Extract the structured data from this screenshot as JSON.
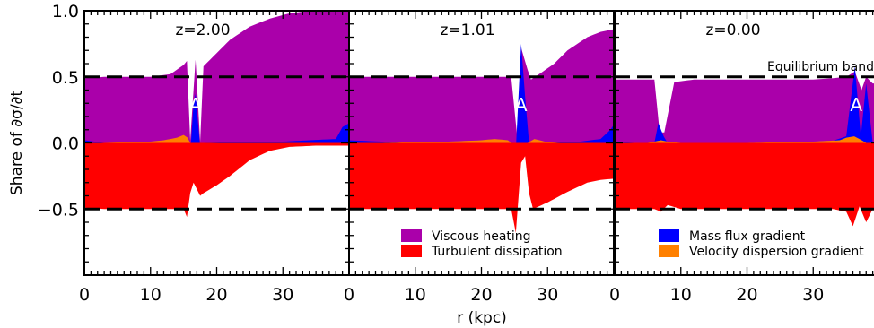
{
  "chart_data": {
    "type": "area",
    "xlabel": "r  (kpc)",
    "ylabel": "Share of ∂σ/∂t",
    "xlim": [
      0,
      40
    ],
    "ylim": [
      -1.0,
      1.0
    ],
    "x_ticks": [
      0,
      10,
      20,
      30
    ],
    "y_ticks": [
      1.0,
      0.5,
      0.0,
      -0.5
    ],
    "y_tick_labels": [
      "1.0",
      "0.5",
      "0.0",
      "−0.5"
    ],
    "reference_lines": [
      0.5,
      -0.5
    ],
    "band_annotation": "Equilibrium band",
    "peak_label": "A",
    "colors": {
      "Viscous heating": "#aa00aa",
      "Turbulent dissipation": "#ff0000",
      "Mass flux gradient": "#0000ff",
      "Velocity dispersion gradient": "#ff8000"
    },
    "legend": [
      [
        "Viscous heating",
        "Turbulent dissipation"
      ],
      [
        "Mass flux gradient",
        "Velocity dispersion gradient"
      ]
    ],
    "panels": [
      {
        "label": "z=2.00",
        "peak_x": 16.8,
        "viscous": [
          [
            0,
            0.49
          ],
          [
            3,
            0.5
          ],
          [
            6,
            0.5
          ],
          [
            10,
            0.5
          ],
          [
            13,
            0.52
          ],
          [
            15,
            0.59
          ],
          [
            15.5,
            0.62
          ],
          [
            16,
            0.02
          ],
          [
            16.8,
            0.63
          ],
          [
            17.5,
            0.01
          ],
          [
            18,
            0.58
          ],
          [
            20,
            0.68
          ],
          [
            22,
            0.78
          ],
          [
            25,
            0.88
          ],
          [
            28,
            0.94
          ],
          [
            31,
            0.98
          ],
          [
            34,
            1.0
          ],
          [
            40,
            1.0
          ]
        ],
        "mass_flux": [
          [
            0,
            0.02
          ],
          [
            3,
            0
          ],
          [
            6,
            0
          ],
          [
            10,
            0
          ],
          [
            13,
            0.005
          ],
          [
            14.5,
            0.01
          ],
          [
            15.5,
            -0.02
          ],
          [
            16,
            -0.09
          ],
          [
            16.5,
            0.3
          ],
          [
            16.8,
            0.37
          ],
          [
            17.5,
            -0.03
          ],
          [
            18,
            0.0
          ],
          [
            22,
            0.005
          ],
          [
            30,
            0.01
          ],
          [
            38,
            0.03
          ],
          [
            39,
            0.12
          ],
          [
            40,
            0.15
          ]
        ],
        "vel_disp": [
          [
            0,
            0.0
          ],
          [
            3,
            0.0
          ],
          [
            6,
            0.005
          ],
          [
            10,
            0.01
          ],
          [
            12,
            0.02
          ],
          [
            14,
            0.04
          ],
          [
            15,
            0.06
          ],
          [
            15.6,
            0.04
          ],
          [
            16,
            0.0
          ],
          [
            17,
            0.0
          ],
          [
            18,
            0.0
          ],
          [
            40,
            0.0
          ]
        ],
        "turbulent": [
          [
            0,
            -0.49
          ],
          [
            3,
            -0.5
          ],
          [
            8,
            -0.5
          ],
          [
            11,
            -0.5
          ],
          [
            13,
            -0.5
          ],
          [
            15,
            -0.5
          ],
          [
            15.5,
            -0.56
          ],
          [
            16,
            -0.38
          ],
          [
            16.5,
            -0.3
          ],
          [
            17.5,
            -0.4
          ],
          [
            18,
            -0.38
          ],
          [
            20,
            -0.32
          ],
          [
            22,
            -0.25
          ],
          [
            25,
            -0.13
          ],
          [
            28,
            -0.06
          ],
          [
            31,
            -0.03
          ],
          [
            35,
            -0.02
          ],
          [
            40,
            -0.02
          ]
        ]
      },
      {
        "label": "z=1.01",
        "peak_x": 26.0,
        "viscous": [
          [
            0,
            0.5
          ],
          [
            5,
            0.5
          ],
          [
            10,
            0.5
          ],
          [
            15,
            0.5
          ],
          [
            20,
            0.5
          ],
          [
            23,
            0.5
          ],
          [
            24.5,
            0.5
          ],
          [
            25.5,
            0.0
          ],
          [
            26,
            0.72
          ],
          [
            27,
            0.55
          ],
          [
            27.5,
            0.48
          ],
          [
            29,
            0.53
          ],
          [
            31,
            0.6
          ],
          [
            33,
            0.7
          ],
          [
            36,
            0.8
          ],
          [
            38,
            0.84
          ],
          [
            40,
            0.86
          ]
        ],
        "mass_flux": [
          [
            0,
            0.02
          ],
          [
            5,
            0.01
          ],
          [
            10,
            0.0
          ],
          [
            20,
            0.0
          ],
          [
            23,
            0.0
          ],
          [
            24.5,
            -0.2
          ],
          [
            25.2,
            -0.05
          ],
          [
            26,
            0.75
          ],
          [
            26.6,
            0.35
          ],
          [
            27.2,
            0.0
          ],
          [
            27.8,
            -0.05
          ],
          [
            30,
            0.0
          ],
          [
            35,
            0.01
          ],
          [
            38,
            0.03
          ],
          [
            39.5,
            0.1
          ],
          [
            40,
            0.14
          ]
        ],
        "vel_disp": [
          [
            0,
            0.0
          ],
          [
            5,
            0.0
          ],
          [
            10,
            0.005
          ],
          [
            15,
            0.01
          ],
          [
            20,
            0.02
          ],
          [
            22,
            0.03
          ],
          [
            24,
            0.02
          ],
          [
            24.5,
            0.0
          ],
          [
            27,
            0.0
          ],
          [
            28,
            0.03
          ],
          [
            30,
            0.005
          ],
          [
            32,
            0.0
          ],
          [
            40,
            0.0
          ]
        ],
        "turbulent": [
          [
            0,
            -0.5
          ],
          [
            5,
            -0.5
          ],
          [
            10,
            -0.5
          ],
          [
            15,
            -0.5
          ],
          [
            20,
            -0.5
          ],
          [
            23,
            -0.5
          ],
          [
            24.5,
            -0.5
          ],
          [
            25.2,
            -0.68
          ],
          [
            26,
            -0.15
          ],
          [
            26.6,
            -0.1
          ],
          [
            27.2,
            -0.38
          ],
          [
            27.8,
            -0.5
          ],
          [
            30,
            -0.45
          ],
          [
            33,
            -0.37
          ],
          [
            36,
            -0.3
          ],
          [
            38,
            -0.28
          ],
          [
            40,
            -0.27
          ]
        ]
      },
      {
        "label": "z=0.00",
        "peak_x": 36.5,
        "viscous": [
          [
            0,
            0.48
          ],
          [
            3,
            0.48
          ],
          [
            6,
            0.48
          ],
          [
            6.8,
            0.08
          ],
          [
            7.5,
            0.08
          ],
          [
            9,
            0.46
          ],
          [
            12,
            0.48
          ],
          [
            16,
            0.48
          ],
          [
            20,
            0.48
          ],
          [
            25,
            0.48
          ],
          [
            30,
            0.48
          ],
          [
            33,
            0.49
          ],
          [
            35,
            0.5
          ],
          [
            36.3,
            0.54
          ],
          [
            37.3,
            0.4
          ],
          [
            38,
            0.5
          ],
          [
            39,
            0.45
          ],
          [
            40,
            0.45
          ]
        ],
        "mass_flux": [
          [
            0,
            0.01
          ],
          [
            3,
            0.0
          ],
          [
            6,
            0.0
          ],
          [
            6.6,
            0.15
          ],
          [
            7.4,
            0.05
          ],
          [
            8,
            0.0
          ],
          [
            15,
            0.0
          ],
          [
            25,
            0.0
          ],
          [
            32,
            0.0
          ],
          [
            35,
            0.05
          ],
          [
            36.3,
            0.58
          ],
          [
            37.2,
            0.05
          ],
          [
            38,
            0.45
          ],
          [
            39,
            0.0
          ],
          [
            40,
            0.0
          ]
        ],
        "vel_disp": [
          [
            0,
            0.0
          ],
          [
            5,
            0.0
          ],
          [
            6,
            0.01
          ],
          [
            7,
            0.02
          ],
          [
            8,
            0.01
          ],
          [
            10,
            0.0
          ],
          [
            20,
            0.0
          ],
          [
            30,
            0.01
          ],
          [
            34,
            0.02
          ],
          [
            35,
            0.04
          ],
          [
            36.2,
            0.05
          ],
          [
            37,
            0.03
          ],
          [
            38,
            0.0
          ],
          [
            40,
            0.0
          ]
        ],
        "turbulent": [
          [
            0,
            -0.5
          ],
          [
            3,
            -0.5
          ],
          [
            6,
            -0.5
          ],
          [
            7,
            -0.52
          ],
          [
            8,
            -0.47
          ],
          [
            10,
            -0.5
          ],
          [
            15,
            -0.5
          ],
          [
            20,
            -0.5
          ],
          [
            25,
            -0.5
          ],
          [
            30,
            -0.5
          ],
          [
            33,
            -0.5
          ],
          [
            35,
            -0.52
          ],
          [
            36,
            -0.63
          ],
          [
            37,
            -0.48
          ],
          [
            38,
            -0.6
          ],
          [
            39,
            -0.5
          ],
          [
            40,
            -0.5
          ]
        ]
      }
    ]
  }
}
